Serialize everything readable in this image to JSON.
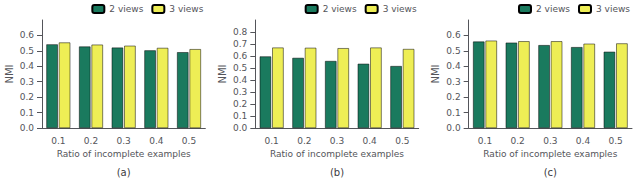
{
  "chart_data": [
    {
      "type": "bar",
      "categories": [
        "0.1",
        "0.2",
        "0.3",
        "0.4",
        "0.5"
      ],
      "series": [
        {
          "name": "2 views",
          "color": "#1a7a5e",
          "values": [
            0.542,
            0.528,
            0.521,
            0.503,
            0.491
          ]
        },
        {
          "name": "3 views",
          "color": "#eeee55",
          "values": [
            0.554,
            0.54,
            0.533,
            0.519,
            0.511
          ]
        }
      ],
      "xlabel": "Ratio of incomplete examples",
      "ylabel": "NMI",
      "annotations": [
        "(a)"
      ],
      "ylim": [
        0,
        0.7
      ],
      "yticks": [
        {
          "value": 0,
          "label": "0.0"
        },
        0.1,
        0.2,
        0.3,
        0.4,
        0.5,
        0.6
      ],
      "grid": false,
      "legend": "upper right"
    },
    {
      "type": "bar",
      "categories": [
        "0.1",
        "0.2",
        "0.3",
        "0.4",
        "0.5"
      ],
      "series": [
        {
          "name": "2 views",
          "color": "#1a7a5e",
          "values": [
            0.596,
            0.584,
            0.558,
            0.535,
            0.516
          ]
        },
        {
          "name": "3 views",
          "color": "#eeee55",
          "values": [
            0.67,
            0.668,
            0.665,
            0.67,
            0.658
          ]
        }
      ],
      "xlabel": "Ratio of incomplete examples",
      "ylabel": "NMI",
      "annotations": [
        "(b)"
      ],
      "ylim": [
        0,
        0.9
      ],
      "yticks": [
        {
          "value": 0,
          "label": "0.0"
        },
        0.1,
        0.2,
        0.3,
        0.4,
        0.5,
        0.6,
        0.7,
        0.8
      ],
      "grid": false,
      "legend": "upper right"
    },
    {
      "type": "bar",
      "categories": [
        "0.1",
        "0.2",
        "0.3",
        "0.4",
        "0.5"
      ],
      "series": [
        {
          "name": "2 views",
          "color": "#1a7a5e",
          "values": [
            0.56,
            0.553,
            0.537,
            0.524,
            0.494
          ]
        },
        {
          "name": "3 views",
          "color": "#eeee55",
          "values": [
            0.566,
            0.562,
            0.562,
            0.546,
            0.548
          ]
        }
      ],
      "xlabel": "Ratio of incomplete examples",
      "ylabel": "NMI",
      "annotations": [
        "(c)"
      ],
      "ylim": [
        0,
        0.7
      ],
      "yticks": [
        {
          "value": 0,
          "label": "0.0"
        },
        0.1,
        0.2,
        0.3,
        0.4,
        0.5,
        0.6
      ],
      "grid": false,
      "legend": "upper right"
    }
  ]
}
